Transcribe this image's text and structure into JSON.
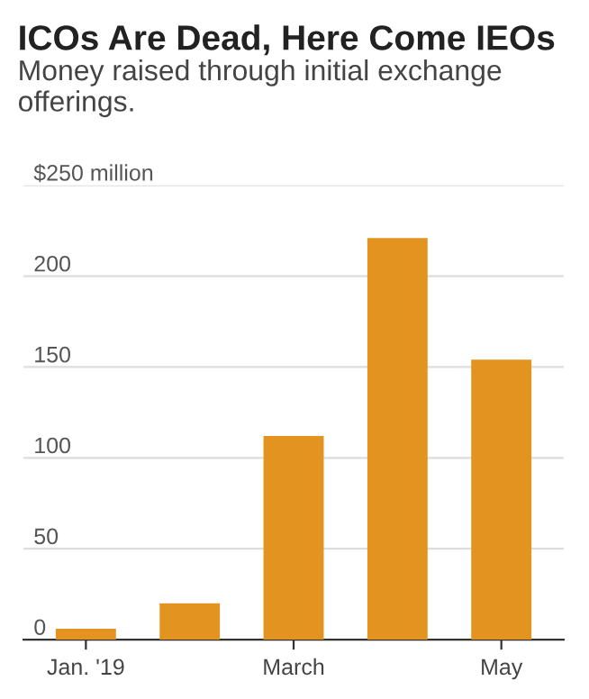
{
  "chart_data": {
    "type": "bar",
    "title": "ICOs Are Dead, Here Come IEOs",
    "subtitle": "Money raised through initial exchange offerings.",
    "categories": [
      "Jan. '19",
      null,
      "March",
      null,
      "May"
    ],
    "values": [
      6,
      20,
      112,
      221,
      154
    ],
    "color": "#e39420",
    "ylim": [
      0,
      250
    ],
    "yticks": [
      0,
      50,
      100,
      150,
      200,
      {
        "value": 250,
        "label": "$250 million"
      }
    ],
    "grid": "y"
  }
}
